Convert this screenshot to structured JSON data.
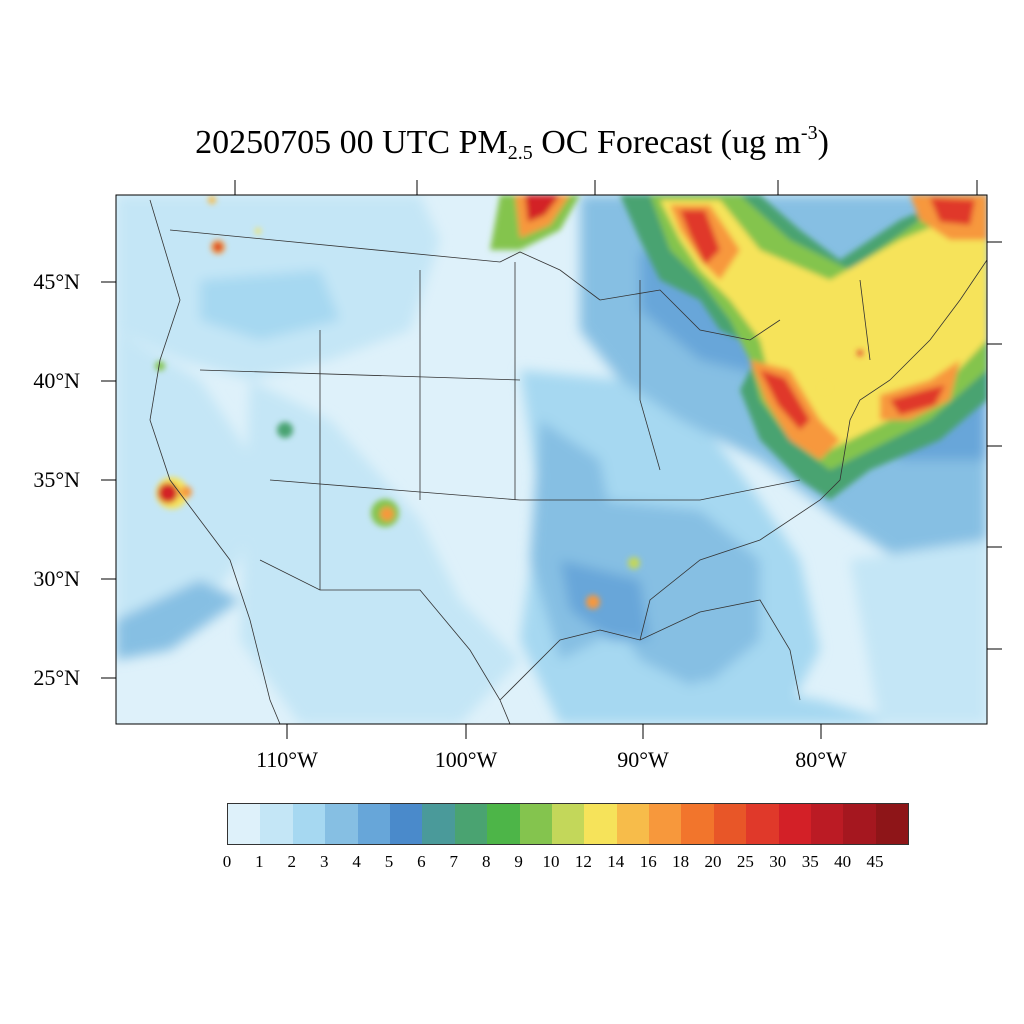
{
  "title": {
    "prefix": "20250705 00 UTC PM",
    "subscript": "2.5",
    "middle": " OC Forecast (ug m",
    "superscript": "-3",
    "suffix": ")"
  },
  "lat_labels": [
    "45°N",
    "40°N",
    "35°N",
    "30°N",
    "25°N"
  ],
  "lon_labels": [
    "110°W",
    "100°W",
    "90°W",
    "80°W"
  ],
  "colorbar": {
    "levels": [
      "0",
      "1",
      "2",
      "3",
      "4",
      "5",
      "6",
      "7",
      "8",
      "9",
      "10",
      "12",
      "14",
      "16",
      "18",
      "20",
      "25",
      "30",
      "35",
      "40",
      "45"
    ],
    "colors": [
      "#def1fa",
      "#c4e6f6",
      "#a6d8f1",
      "#86bfe3",
      "#67a6d9",
      "#4a8acb",
      "#4a9a9a",
      "#4aa371",
      "#4db548",
      "#84c44e",
      "#c3d75a",
      "#f6e35a",
      "#f7bc4a",
      "#f7983c",
      "#f2752c",
      "#e85628",
      "#e0392a",
      "#d32027",
      "#bb1b24",
      "#a5171f",
      "#8e1518"
    ]
  },
  "map": {
    "background_color": "#def1fa",
    "plume_colors": {
      "low": "#a6d8f1",
      "mid": "#67a6d9",
      "teal": "#4aa371",
      "green": "#84c44e",
      "yellow": "#f6e35a",
      "orange": "#f7983c",
      "red": "#e0392a",
      "darkred": "#a5171f"
    }
  }
}
